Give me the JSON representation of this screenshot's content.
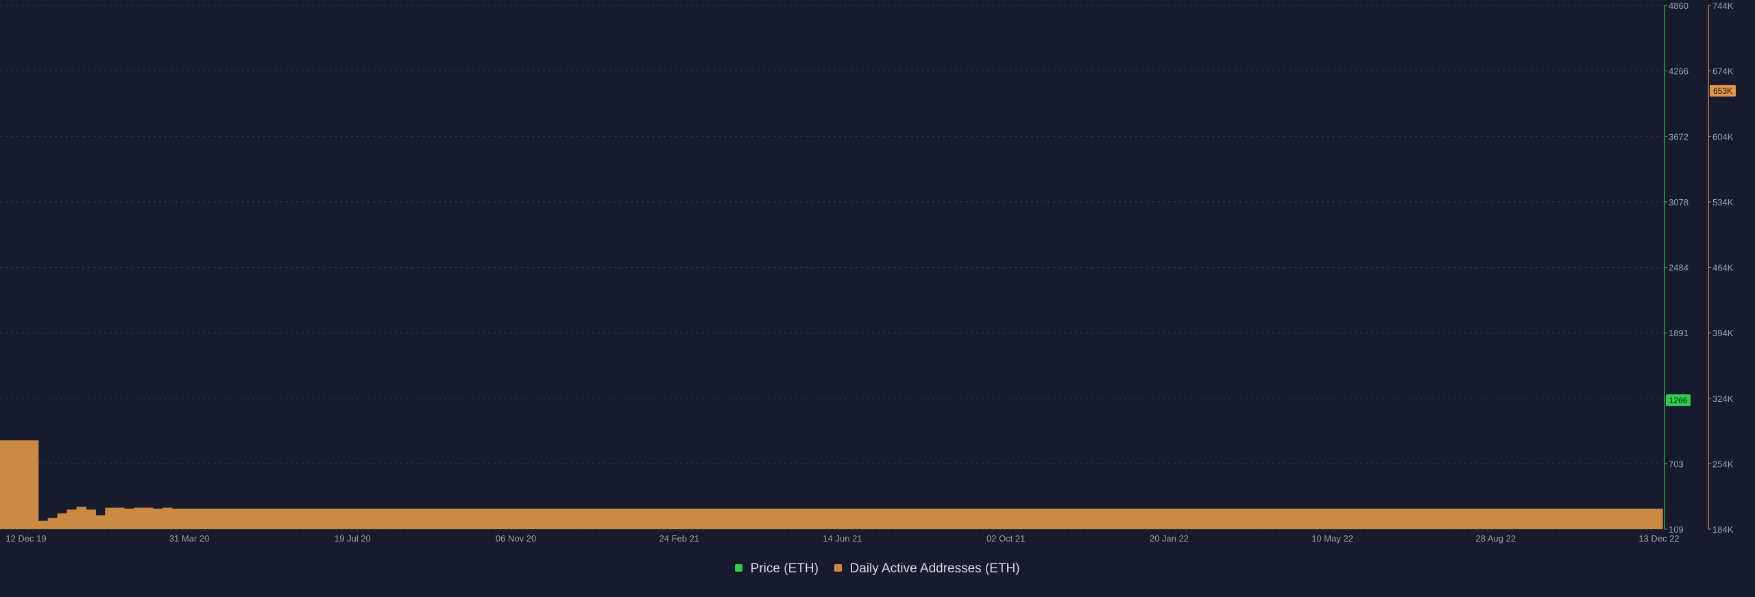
{
  "chart_data": {
    "type": "bar",
    "x_ticks": [
      "12 Dec 19",
      "31 Mar 20",
      "19 Jul 20",
      "06 Nov 20",
      "24 Feb 21",
      "14 Jun 21",
      "02 Oct 21",
      "20 Jan 22",
      "10 May 22",
      "28 Aug 22",
      "13 Dec 22"
    ],
    "x_range": [
      "2019-12-12",
      "2022-12-13"
    ],
    "left_axis": {
      "ticks": [
        "4860",
        "4266",
        "3672",
        "3078",
        "2484",
        "1891",
        "1266",
        "703",
        "109"
      ],
      "range": [
        109,
        4860
      ]
    },
    "right_axis": {
      "ticks": [
        "744K",
        "674K",
        "604K",
        "534K",
        "464K",
        "394K",
        "324K",
        "254K",
        "184K"
      ],
      "range": [
        184000,
        744000
      ]
    },
    "price_badge": "1266",
    "daa_badge": "653K",
    "grid": true,
    "legend_position": "bottom-center",
    "colors": {
      "background": "#171b2d",
      "price": "#2ccf4b",
      "daa": "#cb8a44",
      "daa_edge": "#e0954c",
      "grid": "#363b53",
      "tick_text": "#9ca0b2"
    },
    "series": [
      {
        "name": "Daily Active Addresses (ETH)",
        "axis": "right",
        "kind": "bar",
        "values": [
          279000,
          279000,
          279000,
          279000,
          193000,
          196000,
          201000,
          205000,
          208000,
          205000,
          199000,
          207000,
          207000,
          206000,
          207000,
          207000,
          206000,
          207000,
          206000,
          206000,
          206000,
          206000,
          206000,
          206000,
          206000,
          206000,
          206000,
          206000,
          206000,
          206000,
          206000,
          206000,
          206000,
          206000,
          206000,
          206000,
          206000,
          206000,
          206000,
          206000,
          206000,
          206000,
          206000,
          206000,
          206000,
          206000,
          206000,
          206000,
          206000,
          206000,
          206000,
          206000,
          206000,
          206000,
          206000,
          206000,
          206000,
          206000,
          206000,
          206000,
          206000,
          206000,
          206000,
          206000,
          206000,
          206000,
          206000,
          206000,
          206000,
          206000,
          206000,
          206000,
          206000,
          206000,
          206000,
          206000,
          206000,
          206000,
          206000,
          206000,
          206000,
          206000,
          206000,
          206000,
          206000,
          206000,
          206000,
          206000,
          206000,
          206000,
          206000,
          206000,
          206000,
          206000,
          206000,
          206000,
          206000,
          206000,
          206000,
          206000,
          206000,
          206000,
          206000,
          206000,
          206000,
          206000,
          206000,
          206000,
          206000,
          206000,
          206000,
          206000,
          206000,
          206000,
          206000,
          206000,
          206000,
          206000,
          206000,
          206000,
          206000,
          206000,
          206000,
          206000,
          206000,
          206000,
          206000,
          206000,
          206000,
          206000,
          206000,
          206000,
          206000,
          206000,
          206000,
          206000,
          206000,
          206000,
          206000,
          206000,
          206000,
          206000,
          206000,
          206000,
          206000,
          206000,
          206000,
          206000,
          206000,
          206000,
          206000,
          206000,
          206000,
          206000,
          206000,
          206000,
          206000,
          206000,
          206000,
          206000,
          206000,
          206000,
          206000,
          206000,
          206000,
          206000,
          206000,
          206000,
          206000,
          206000,
          206000,
          206000,
          206000,
          206000
        ]
      },
      {
        "name": "Price (ETH)",
        "axis": "left",
        "kind": "line",
        "values": []
      }
    ]
  }
}
